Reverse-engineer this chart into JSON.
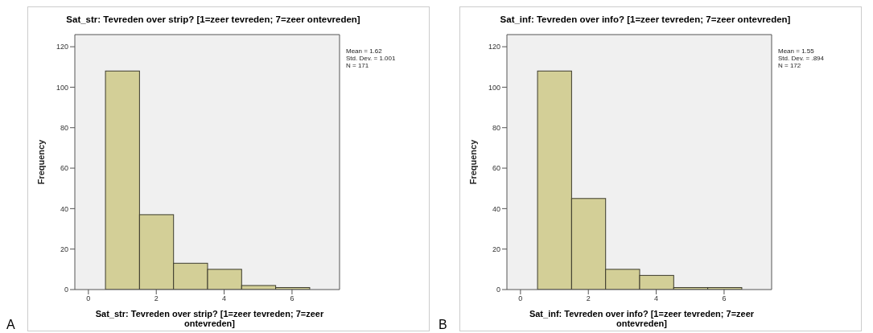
{
  "chart_data": [
    {
      "type": "histogram",
      "title": "Sat_str: Tevreden over strip? [1=zeer tevreden; 7=zeer ontevreden]",
      "xlabel": "Sat_str: Tevreden over strip? [1=zeer tevreden; 7=zeer ontevreden]",
      "ylabel": "Frequency",
      "bins": [
        0.5,
        1.5,
        2.5,
        3.5,
        4.5,
        5.5,
        6.5
      ],
      "values": [
        108,
        37,
        13,
        10,
        2,
        1
      ],
      "color": "#d3cf97",
      "xlim": [
        -0.4,
        7.4
      ],
      "ylim": [
        0,
        126
      ],
      "xticks": [
        0,
        2,
        4,
        6
      ],
      "yticks": [
        0,
        20,
        40,
        60,
        80,
        100,
        120
      ],
      "annotations": [
        "Mean = 1.62",
        "Std. Dev. = 1.001",
        "N = 171",
        "A"
      ]
    },
    {
      "type": "histogram",
      "title": "Sat_inf: Tevreden over info? [1=zeer tevreden; 7=zeer ontevreden]",
      "xlabel": "Sat_inf: Tevreden over info? [1=zeer tevreden; 7=zeer ontevreden]",
      "ylabel": "Frequency",
      "bins": [
        0.5,
        1.5,
        2.5,
        3.5,
        4.5,
        5.5,
        6.5
      ],
      "values": [
        108,
        45,
        10,
        7,
        1,
        1
      ],
      "color": "#d3cf97",
      "xlim": [
        -0.4,
        7.4
      ],
      "ylim": [
        0,
        126
      ],
      "xticks": [
        0,
        2,
        4,
        6
      ],
      "yticks": [
        0,
        20,
        40,
        60,
        80,
        100,
        120
      ],
      "annotations": [
        "Mean = 1.55",
        "Std. Dev. = .894",
        "N = 172",
        "B"
      ]
    }
  ]
}
